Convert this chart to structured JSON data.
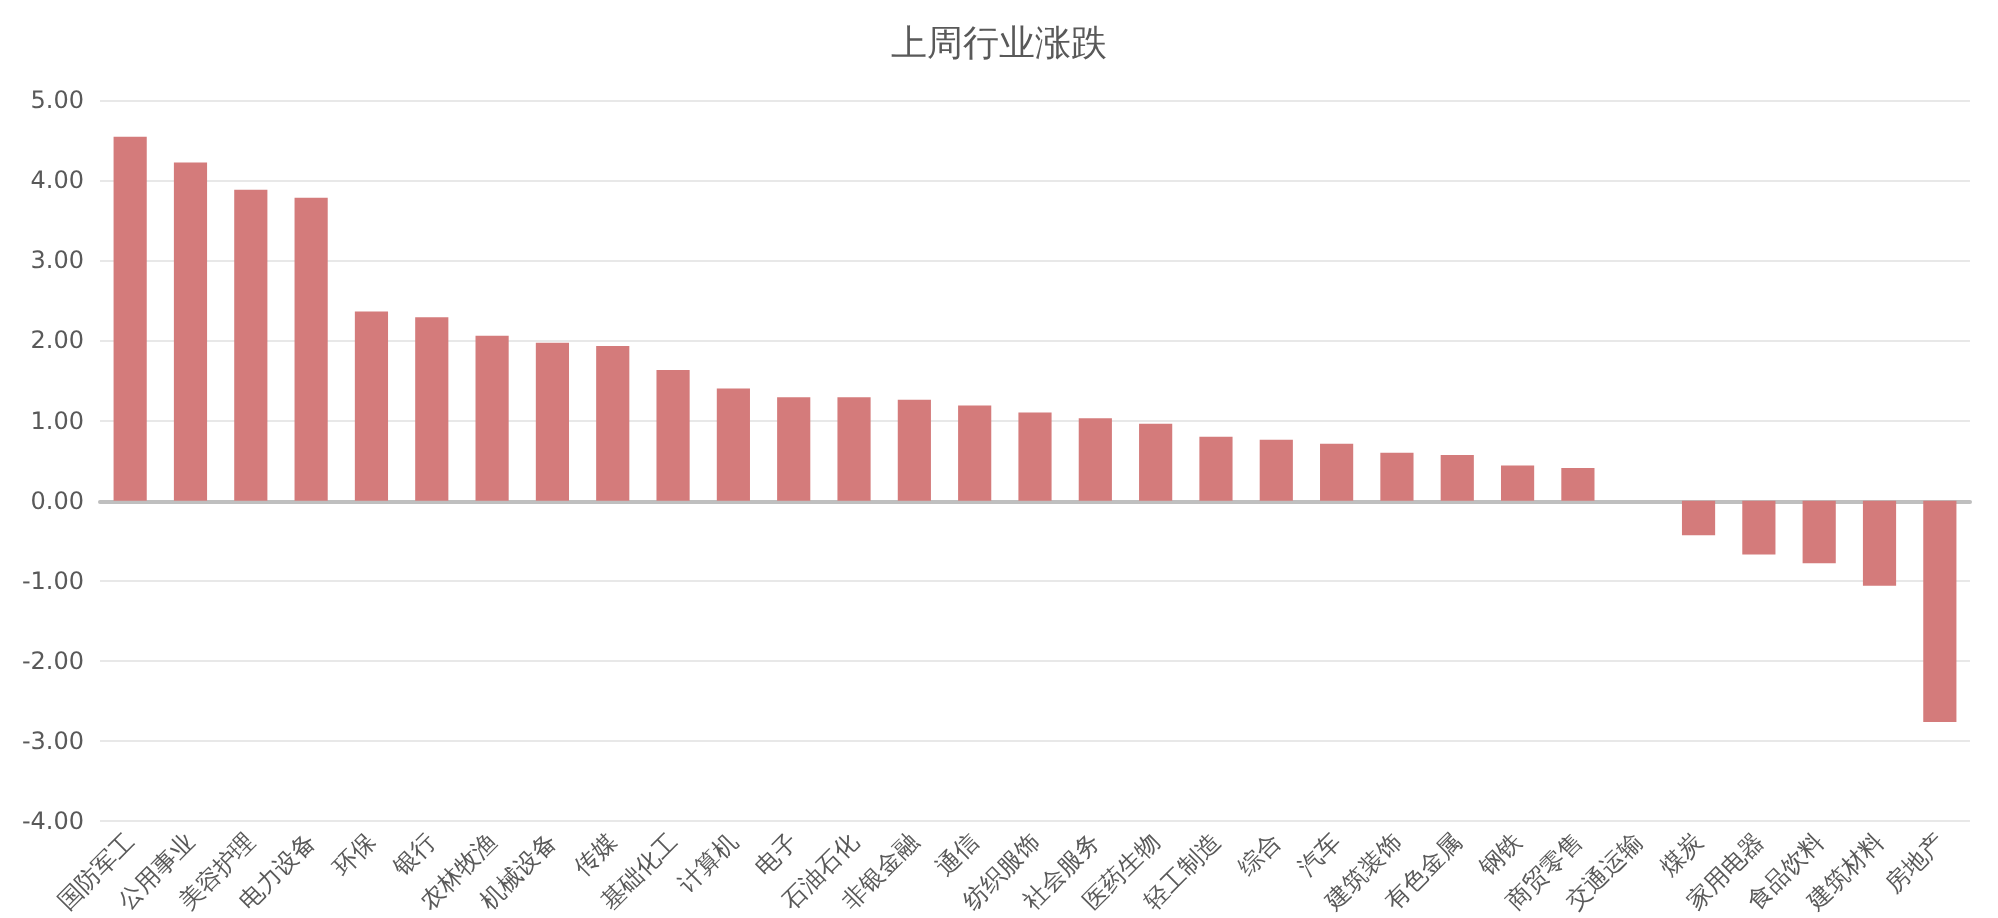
{
  "chart_data": {
    "type": "bar",
    "title": "上周行业涨跌",
    "categories": [
      "国防军工",
      "公用事业",
      "美容护理",
      "电力设备",
      "环保",
      "银行",
      "农林牧渔",
      "机械设备",
      "传媒",
      "基础化工",
      "计算机",
      "电子",
      "石油石化",
      "非银金融",
      "通信",
      "纺织服饰",
      "社会服务",
      "医药生物",
      "轻工制造",
      "综合",
      "汽车",
      "建筑装饰",
      "有色金属",
      "钢铁",
      "商贸零售",
      "交通运输",
      "煤炭",
      "家用电器",
      "食品饮料",
      "建筑材料",
      "房地产"
    ],
    "values": [
      4.54,
      4.22,
      3.88,
      3.78,
      2.36,
      2.29,
      2.06,
      1.97,
      1.93,
      1.63,
      1.4,
      1.29,
      1.29,
      1.26,
      1.19,
      1.1,
      1.03,
      0.96,
      0.8,
      0.76,
      0.71,
      0.6,
      0.57,
      0.44,
      0.41,
      0,
      -0.43,
      -0.67,
      -0.78,
      -1.06,
      -2.76
    ],
    "color": "#d47b7b",
    "ylim": [
      -4,
      5
    ],
    "yticks": [
      {
        "value": -4,
        "label": "-4.00"
      },
      {
        "value": -3,
        "label": "-3.00"
      },
      {
        "value": -2,
        "label": "-2.00"
      },
      {
        "value": -1,
        "label": "-1.00"
      },
      {
        "value": 0,
        "label": "0.00"
      },
      {
        "value": 1,
        "label": "1.00"
      },
      {
        "value": 2,
        "label": "2.00"
      },
      {
        "value": 3,
        "label": "3.00"
      },
      {
        "value": 4,
        "label": "4.00"
      },
      {
        "value": 5,
        "label": "5.00"
      }
    ],
    "grid": "y"
  }
}
